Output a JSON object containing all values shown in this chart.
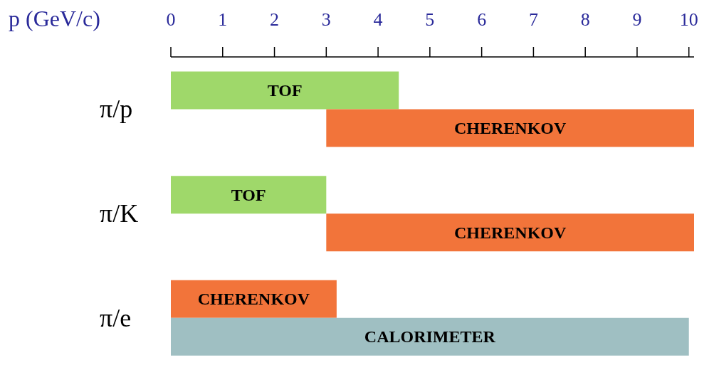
{
  "chart_data": {
    "type": "bar",
    "orientation": "horizontal",
    "xlabel": "p (GeV/c)",
    "categories": [
      "π/p",
      "π/K",
      "π/e"
    ],
    "series": [
      {
        "values": [
          4.4,
          3,
          3.2
        ],
        "base": [
          0,
          0,
          0
        ],
        "colors": [
          "#9fd86a",
          "#9fd86a",
          "#f2743a"
        ],
        "value_labels": [
          "TOF",
          "TOF",
          "CHERENKOV"
        ]
      },
      {
        "values": [
          7.1,
          7.1,
          10
        ],
        "base": [
          3,
          3,
          0
        ],
        "colors": [
          "#f2743a",
          "#f2743a",
          "#9fbfc2"
        ],
        "value_labels": [
          "CHERENKOV",
          "CHERENKOV",
          "CALORIMETER"
        ]
      }
    ],
    "xlim": [
      0,
      10.1
    ],
    "xticks": [
      0,
      1,
      2,
      3,
      4,
      5,
      6,
      7,
      8,
      9,
      10
    ]
  }
}
